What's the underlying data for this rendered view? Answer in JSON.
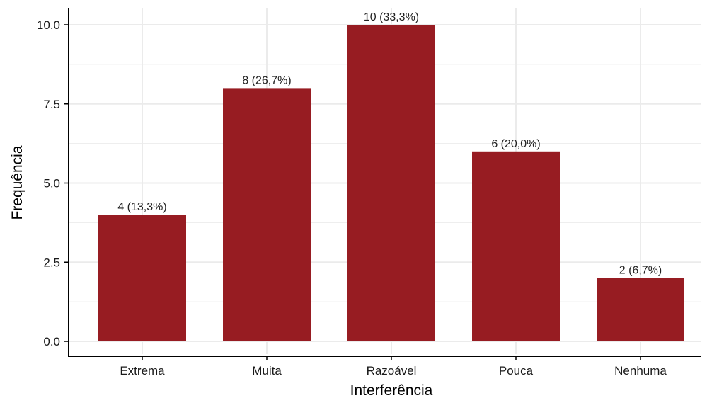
{
  "chart_data": {
    "type": "bar",
    "title": "",
    "xlabel": "Interferência",
    "ylabel": "Frequência",
    "categories": [
      "Extrema",
      "Muita",
      "Razoável",
      "Pouca",
      "Nenhuma"
    ],
    "values": [
      4,
      8,
      10,
      6,
      2
    ],
    "data_labels": [
      "4 (13,3%)",
      "8 (26,7%)",
      "10 (33,3%)",
      "6 (20,0%)",
      "2 (6,7%)"
    ],
    "ylim": [
      0,
      10
    ],
    "y_ticks": [
      0,
      2.5,
      5,
      7.5,
      10
    ],
    "y_tick_labels": [
      "0.0",
      "2.5",
      "5.0",
      "7.5",
      "10.0"
    ],
    "grid": true,
    "legend": "none",
    "colors": {
      "bar": "#971C22",
      "grid": "#EBEBEB",
      "axis": "#000000"
    }
  }
}
